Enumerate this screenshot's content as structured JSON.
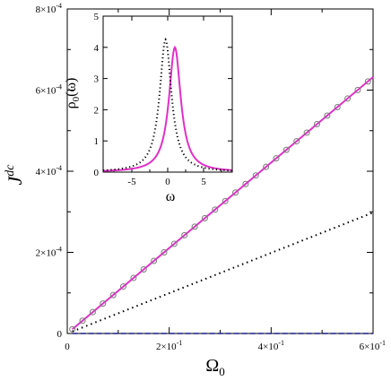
{
  "chart_data": [
    {
      "type": "line",
      "panel": "main",
      "xlabel": "Ω",
      "xlabel_sub": "0",
      "ylabel": "J",
      "ylabel_sup": "dc",
      "xlim": [
        0,
        0.6
      ],
      "ylim": [
        0,
        0.0008
      ],
      "xticks": [
        0,
        0.2,
        0.4,
        0.6
      ],
      "xtick_labels": [
        {
          "text": "0",
          "mant": "",
          "exp": ""
        },
        {
          "text": "",
          "mant": "2×10",
          "exp": "-1"
        },
        {
          "text": "",
          "mant": "4×10",
          "exp": "-1"
        },
        {
          "text": "",
          "mant": "6×10",
          "exp": "-1"
        }
      ],
      "yticks": [
        0,
        0.0002,
        0.0004,
        0.0006,
        0.0008
      ],
      "ytick_labels": [
        {
          "text": "0",
          "mant": "",
          "exp": ""
        },
        {
          "text": "",
          "mant": "2×10",
          "exp": "-4"
        },
        {
          "text": "",
          "mant": "4×10",
          "exp": "-4"
        },
        {
          "text": "",
          "mant": "6×10",
          "exp": "-4"
        },
        {
          "text": "",
          "mant": "8×10",
          "exp": "-4"
        }
      ],
      "series": [
        {
          "style": "solid",
          "color": "#e030c8",
          "x": [
            0.01,
            0.6
          ],
          "y": [
            1.05e-05,
            0.000632
          ]
        },
        {
          "style": "circles",
          "color": "#7a7a7a",
          "x": [
            0.01,
            0.03,
            0.05,
            0.07,
            0.09,
            0.11,
            0.13,
            0.15,
            0.17,
            0.19,
            0.21,
            0.23,
            0.25,
            0.27,
            0.29,
            0.31,
            0.33,
            0.35,
            0.37,
            0.39,
            0.41,
            0.43,
            0.45,
            0.47,
            0.49,
            0.51,
            0.53,
            0.55,
            0.57,
            0.59
          ],
          "slope": 0.001053
        },
        {
          "style": "dotted",
          "color": "#000000",
          "x": [
            0.01,
            0.6
          ],
          "y": [
            5e-06,
            0.000298
          ]
        },
        {
          "style": "dashed",
          "color": "#1a1a8c",
          "x": [
            0.01,
            0.6
          ],
          "y": [
            0.0,
            0.0
          ]
        }
      ]
    },
    {
      "type": "line",
      "panel": "inset",
      "xlabel": "ω",
      "ylabel": "ρ",
      "ylabel_sub": "0",
      "ylabel_suffix": "(ω)",
      "xlim": [
        -9,
        9
      ],
      "ylim": [
        0,
        5
      ],
      "xticks": [
        -5,
        0,
        5
      ],
      "xtick_labels": [
        "-5",
        "0",
        "5"
      ],
      "yticks": [
        0,
        1,
        2,
        3,
        4,
        5
      ],
      "ytick_labels": [
        "0",
        "1",
        "2",
        "3",
        "4",
        "5"
      ],
      "series": [
        {
          "style": "solid",
          "color": "#e030c8",
          "center": 1.0,
          "peak": 4.0,
          "halfwidth": 1.0
        },
        {
          "style": "dotted",
          "color": "#000000",
          "center": -0.3,
          "peak": 4.25,
          "halfwidth": 1.0
        }
      ]
    }
  ]
}
